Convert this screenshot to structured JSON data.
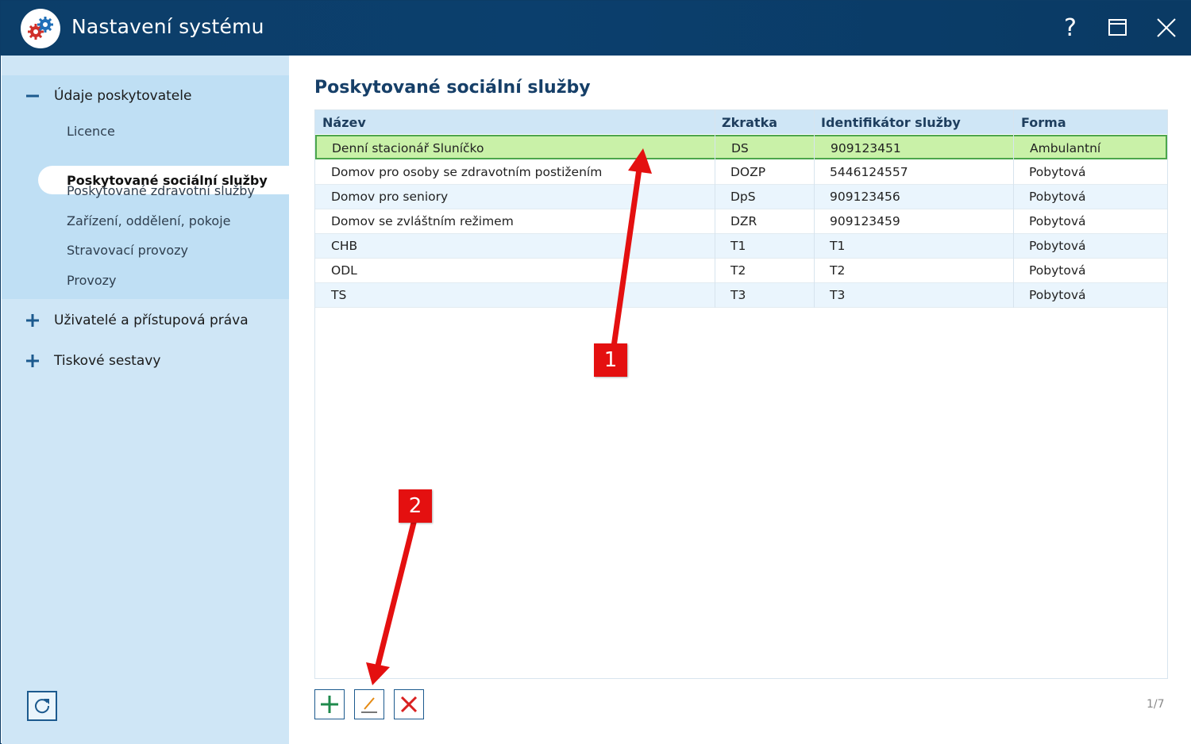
{
  "window": {
    "title": "Nastavení systému",
    "buttons": {
      "help": "?",
      "maximize_icon": "maximize-icon",
      "close_icon": "close-icon"
    }
  },
  "sidebar": {
    "groups": [
      {
        "sign": "−",
        "label": "Údaje poskytovatele",
        "expanded": true
      },
      {
        "sign": "+",
        "label": "Uživatelé a přístupová práva",
        "expanded": false
      },
      {
        "sign": "+",
        "label": "Tiskové sestavy",
        "expanded": false
      }
    ],
    "items": [
      {
        "label": "Licence"
      },
      {
        "label": "Poskytované sociální služby",
        "selected": true
      },
      {
        "label": "Poskytované zdravotní služby"
      },
      {
        "label": "Zařízení, oddělení, pokoje"
      },
      {
        "label": "Stravovací provozy"
      },
      {
        "label": "Provozy"
      }
    ],
    "refresh_icon": "refresh-icon"
  },
  "main": {
    "title": "Poskytované sociální služby",
    "columns": [
      "Název",
      "Zkratka",
      "Identifikátor služby",
      "Forma"
    ],
    "rows": [
      {
        "name": "Denní stacionář Sluníčko",
        "abbr": "DS",
        "id": "909123451",
        "form": "Ambulantní",
        "selected": true
      },
      {
        "name": "Domov pro osoby se zdravotním postižením",
        "abbr": "DOZP",
        "id": "5446124557",
        "form": "Pobytová"
      },
      {
        "name": "Domov pro seniory",
        "abbr": "DpS",
        "id": "909123456",
        "form": "Pobytová"
      },
      {
        "name": "Domov se zvláštním režimem",
        "abbr": "DZR",
        "id": "909123459",
        "form": "Pobytová"
      },
      {
        "name": "CHB",
        "abbr": "T1",
        "id": "T1",
        "form": "Pobytová"
      },
      {
        "name": "ODL",
        "abbr": "T2",
        "id": "T2",
        "form": "Pobytová"
      },
      {
        "name": "TS",
        "abbr": "T3",
        "id": "T3",
        "form": "Pobytová"
      }
    ],
    "toolbar": {
      "add_icon": "plus-icon",
      "edit_icon": "pencil-icon",
      "delete_icon": "delete-x-icon"
    },
    "pager": "1/7"
  },
  "annotations": {
    "callout_1": "1",
    "callout_2": "2"
  },
  "colors": {
    "titlebar": "#0b3f6d",
    "sidebar": "#cfe6f6",
    "selected_row": "#c9f1a8",
    "accent": "#163f68",
    "callout": "#e41010"
  }
}
